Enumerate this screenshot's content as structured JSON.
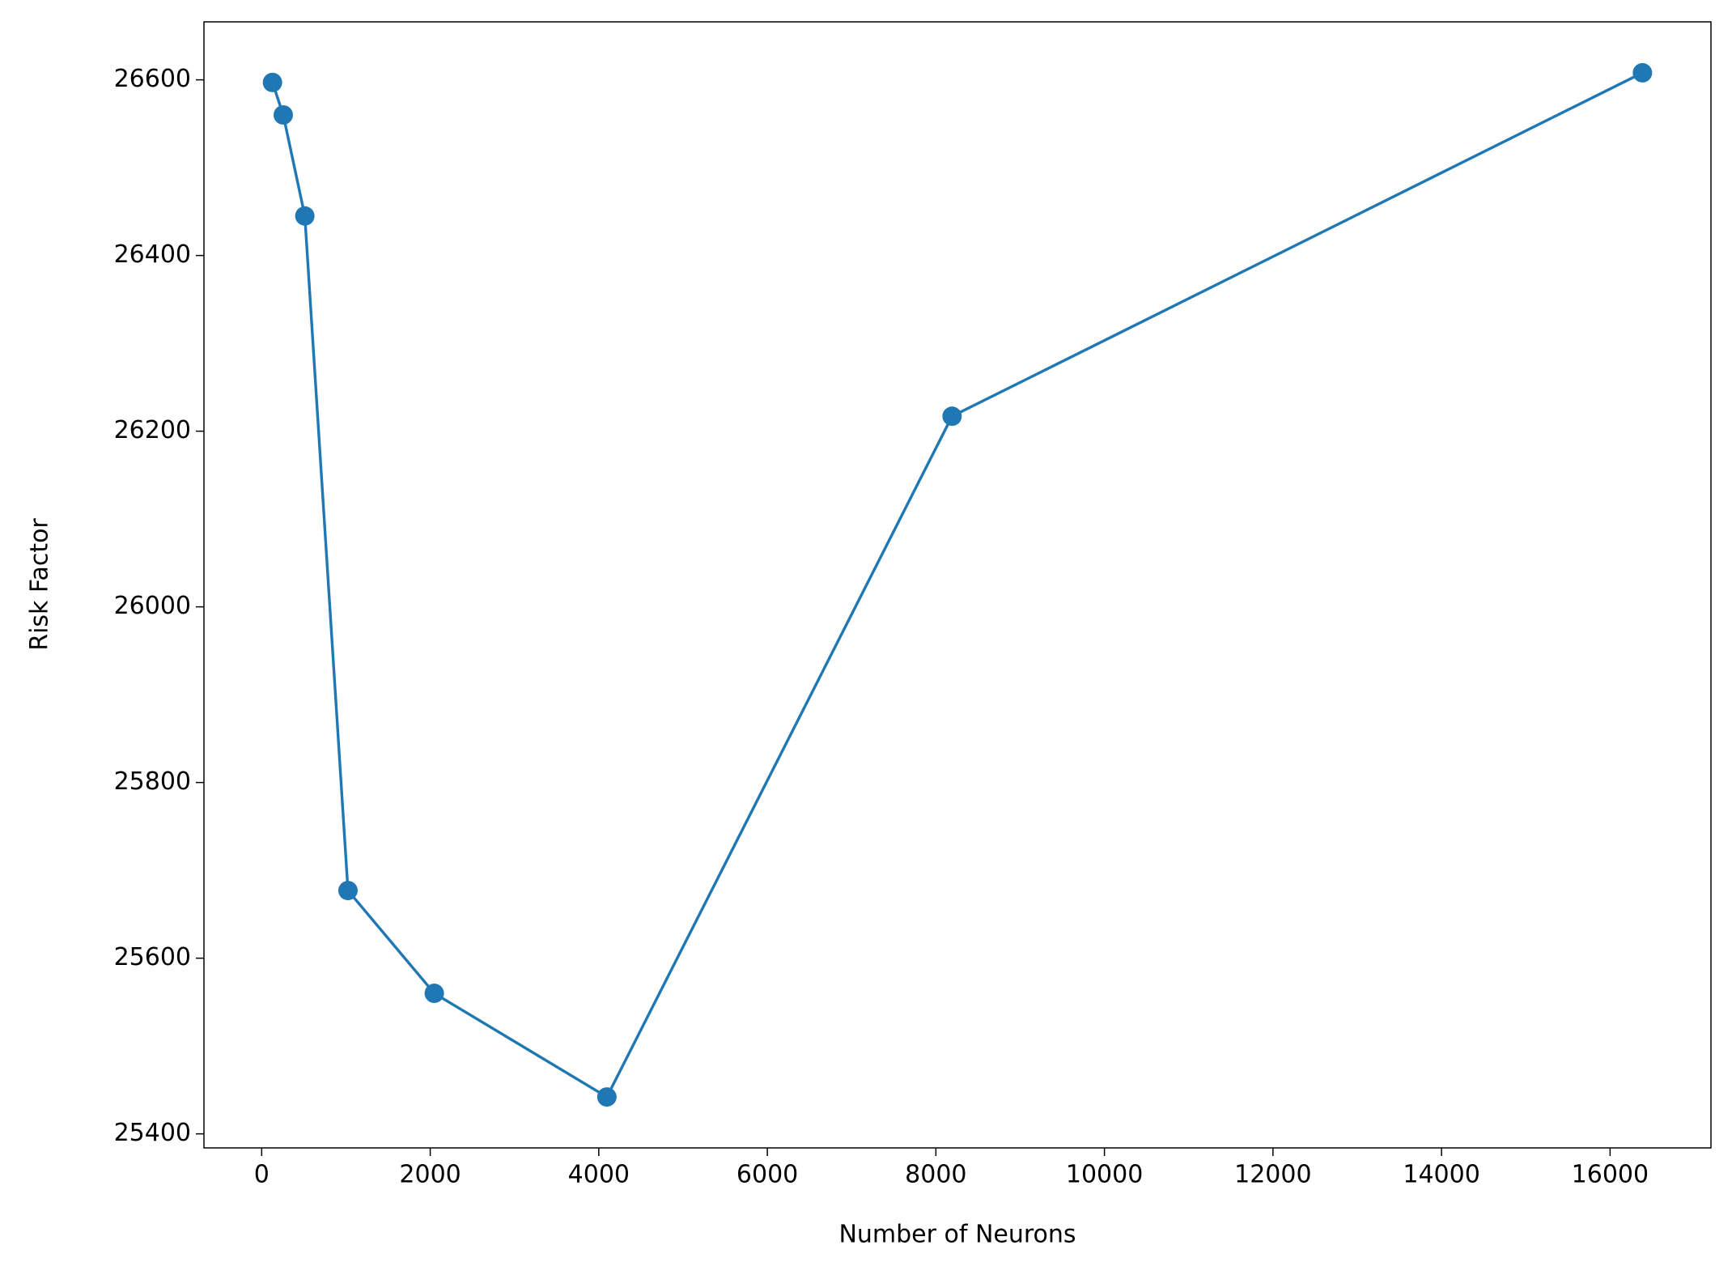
{
  "chart_data": {
    "type": "line",
    "x_label": "Number of Neurons",
    "y_label": "Risk Factor",
    "x": [
      128,
      256,
      512,
      1024,
      2048,
      4096,
      8192,
      16384
    ],
    "series": [
      {
        "color": "#1f77b4",
        "values": [
          26597,
          26560,
          26445,
          25677,
          25560,
          25442,
          26217,
          26608
        ]
      }
    ],
    "xlim": [
      -685,
      17197
    ],
    "xticks": [
      0,
      2000,
      4000,
      6000,
      8000,
      10000,
      12000,
      14000,
      16000
    ],
    "ylim": [
      25384,
      26666
    ],
    "yticks": [
      25400,
      25600,
      25800,
      26000,
      26200,
      26400,
      26600
    ],
    "grid": false,
    "markers": true
  }
}
